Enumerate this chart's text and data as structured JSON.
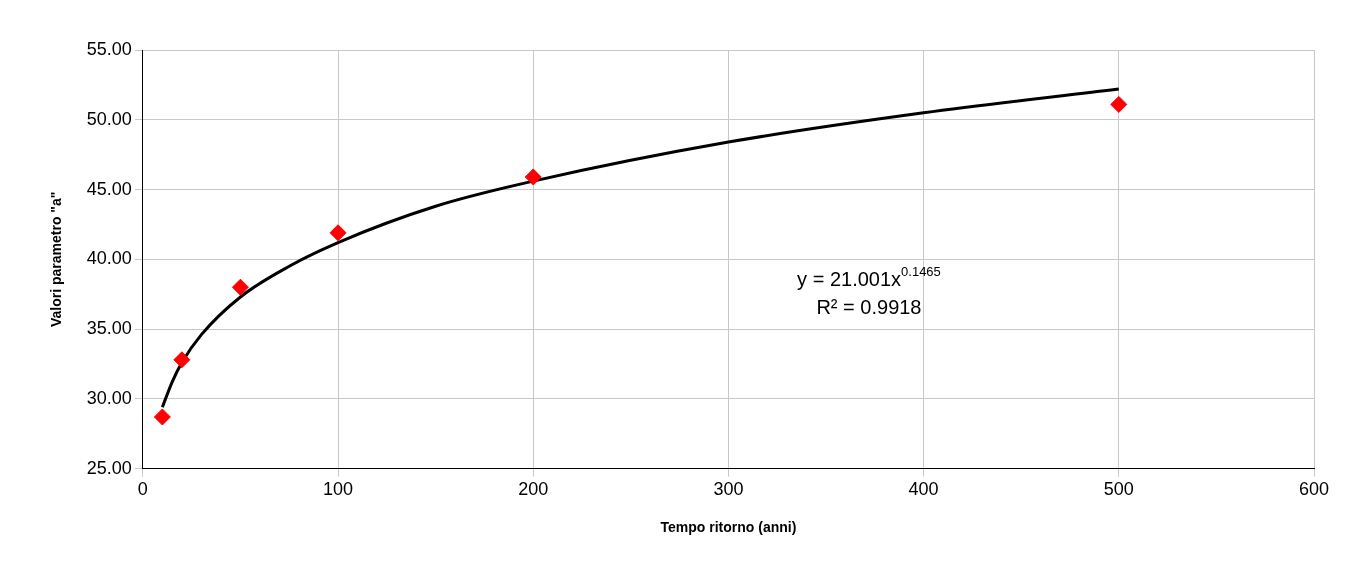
{
  "chart_data": {
    "type": "scatter",
    "xlabel": "Tempo ritorno (anni)",
    "ylabel": "Valori parametro \"a\"",
    "x": [
      10,
      20,
      50,
      100,
      200,
      500
    ],
    "series": [
      {
        "color": "#ff0000",
        "marker": "diamond",
        "values": [
          28.7,
          32.8,
          38.0,
          41.9,
          45.9,
          51.1
        ]
      },
      {
        "type": "line",
        "color": "#000000",
        "marker": "none",
        "x": [
          10,
          15,
          20,
          30,
          50,
          75,
          100,
          150,
          200,
          300,
          400,
          500
        ],
        "values": [
          29.4,
          31.2,
          32.6,
          34.6,
          37.3,
          39.5,
          41.2,
          43.8,
          45.6,
          48.4,
          50.5,
          52.2
        ]
      }
    ],
    "xlim": [
      0,
      600
    ],
    "xticks": [
      0,
      100,
      200,
      300,
      400,
      500,
      600
    ],
    "ylim": [
      25,
      55
    ],
    "yticks": [
      {
        "value": 25,
        "label": "25.00"
      },
      {
        "value": 30,
        "label": "30.00"
      },
      {
        "value": 35,
        "label": "35.00"
      },
      {
        "value": 40,
        "label": "40.00"
      },
      {
        "value": 45,
        "label": "45.00"
      },
      {
        "value": 50,
        "label": "50.00"
      },
      {
        "value": 55,
        "label": "55.00"
      }
    ],
    "grid": true,
    "annotations": [
      "y = 21.001x$^{0.1465}$",
      "R² = 0.9918"
    ]
  }
}
